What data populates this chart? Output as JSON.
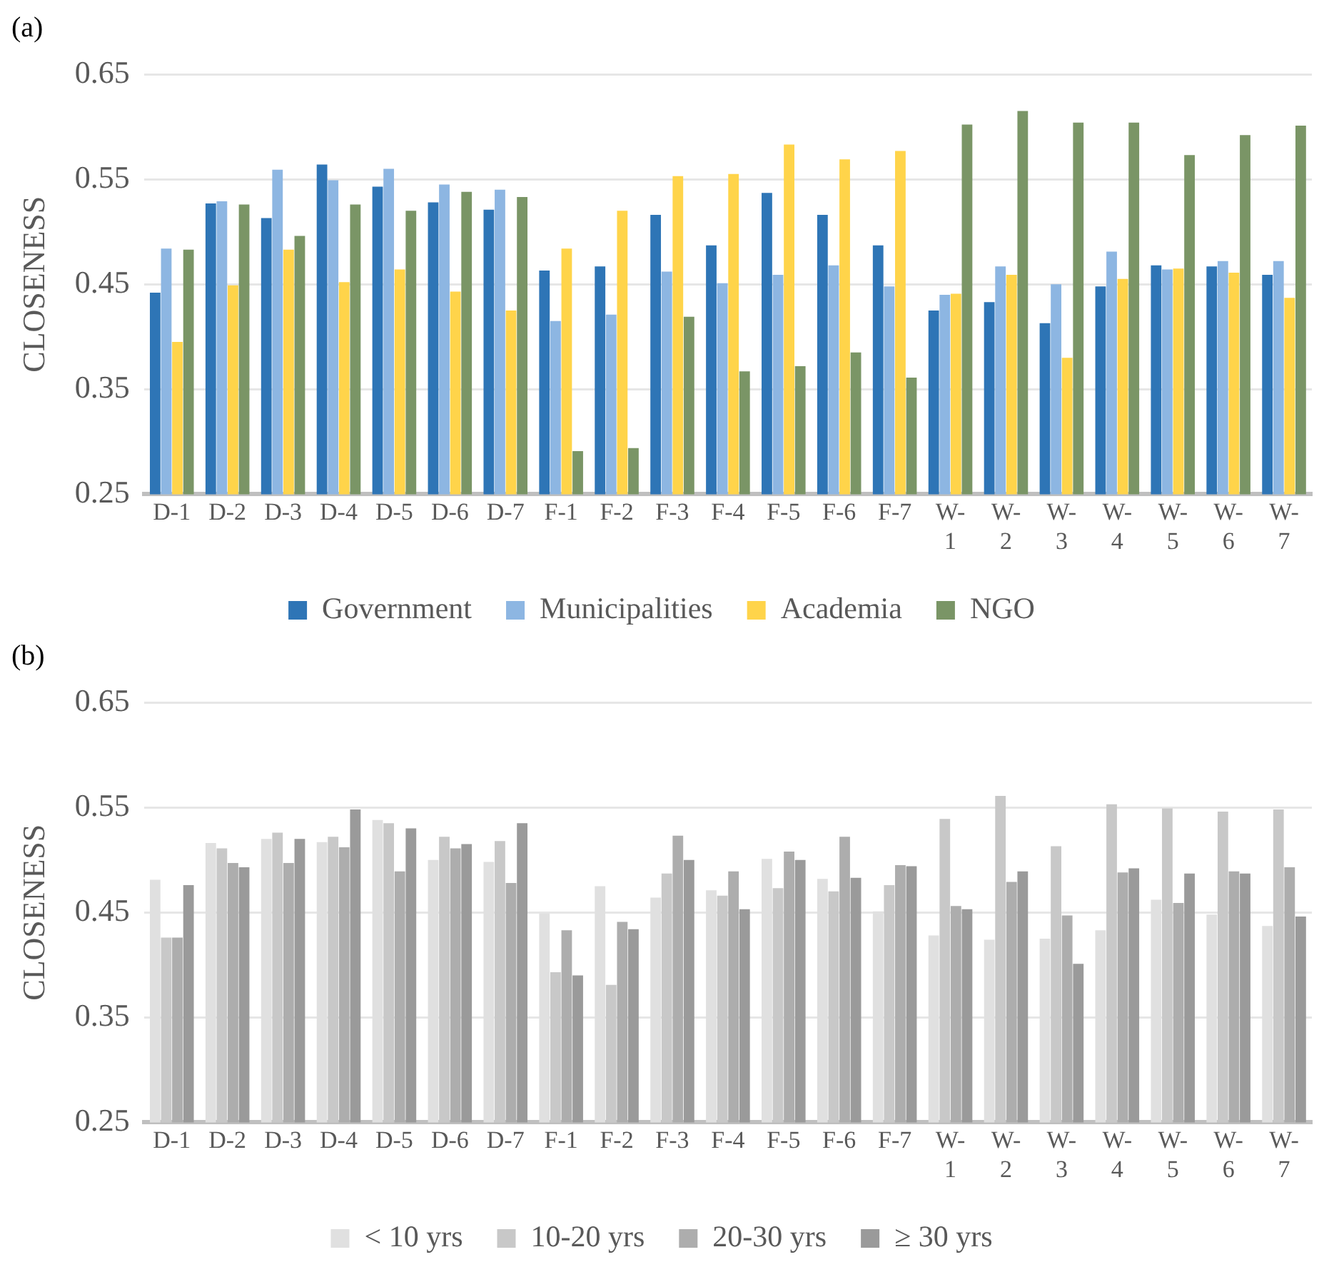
{
  "chart_data": [
    {
      "type": "bar",
      "title": "(a)",
      "ylabel": "CLOSENESS",
      "categories": [
        "D-1",
        "D-2",
        "D-3",
        "D-4",
        "D-5",
        "D-6",
        "D-7",
        "F-1",
        "F-2",
        "F-3",
        "F-4",
        "F-5",
        "F-6",
        "F-7",
        "W-1",
        "W-2",
        "W-3",
        "W-4",
        "W-5",
        "W-6",
        "W-7"
      ],
      "series": [
        {
          "name": "Government",
          "color": "#2e75b6",
          "values": [
            0.442,
            0.527,
            0.513,
            0.564,
            0.543,
            0.528,
            0.521,
            0.463,
            0.467,
            0.516,
            0.487,
            0.537,
            0.516,
            0.487,
            0.425,
            0.433,
            0.413,
            0.448,
            0.468,
            0.467,
            0.459
          ]
        },
        {
          "name": "Municipalities",
          "color": "#8db6e2",
          "values": [
            0.484,
            0.529,
            0.559,
            0.549,
            0.56,
            0.545,
            0.54,
            0.415,
            0.421,
            0.462,
            0.451,
            0.459,
            0.468,
            0.448,
            0.44,
            0.467,
            0.45,
            0.481,
            0.464,
            0.472,
            0.472
          ]
        },
        {
          "name": "Academia",
          "color": "#ffd44a",
          "values": [
            0.395,
            0.449,
            0.483,
            0.452,
            0.464,
            0.443,
            0.425,
            0.484,
            0.52,
            0.553,
            0.555,
            0.583,
            0.569,
            0.577,
            0.441,
            0.459,
            0.38,
            0.455,
            0.465,
            0.461,
            0.437
          ]
        },
        {
          "name": "NGO",
          "color": "#7a9566",
          "values": [
            0.483,
            0.526,
            0.496,
            0.526,
            0.52,
            0.538,
            0.533,
            0.291,
            0.294,
            0.419,
            0.367,
            0.372,
            0.385,
            0.361,
            0.602,
            0.615,
            0.604,
            0.604,
            0.573,
            0.592,
            0.601
          ]
        }
      ],
      "ylim": [
        0.25,
        0.65
      ],
      "yticks": [
        0.25,
        0.35,
        0.45,
        0.55,
        0.65
      ],
      "grid": "y",
      "legend": "bottom"
    },
    {
      "type": "bar",
      "title": "(b)",
      "ylabel": "CLOSENESS",
      "categories": [
        "D-1",
        "D-2",
        "D-3",
        "D-4",
        "D-5",
        "D-6",
        "D-7",
        "F-1",
        "F-2",
        "F-3",
        "F-4",
        "F-5",
        "F-6",
        "F-7",
        "W-1",
        "W-2",
        "W-3",
        "W-4",
        "W-5",
        "W-6",
        "W-7"
      ],
      "series": [
        {
          "name": "< 10 yrs",
          "color": "#e0e0e0",
          "values": [
            0.481,
            0.516,
            0.52,
            0.517,
            0.538,
            0.5,
            0.498,
            0.449,
            0.475,
            0.464,
            0.471,
            0.501,
            0.482,
            0.451,
            0.428,
            0.424,
            0.425,
            0.433,
            0.462,
            0.448,
            0.437
          ]
        },
        {
          "name": "10-20 yrs",
          "color": "#c8c8c8",
          "values": [
            0.426,
            0.511,
            0.526,
            0.522,
            0.535,
            0.522,
            0.518,
            0.393,
            0.381,
            0.487,
            0.466,
            0.473,
            0.47,
            0.476,
            0.539,
            0.561,
            0.513,
            0.553,
            0.549,
            0.546,
            0.548
          ]
        },
        {
          "name": "20-30 yrs",
          "color": "#adadad",
          "values": [
            0.426,
            0.497,
            0.497,
            0.512,
            0.489,
            0.511,
            0.478,
            0.433,
            0.441,
            0.523,
            0.489,
            0.508,
            0.522,
            0.495,
            0.456,
            0.479,
            0.447,
            0.488,
            0.459,
            0.489,
            0.493
          ]
        },
        {
          "name": "≥ 30 yrs",
          "color": "#9a9a9a",
          "values": [
            0.476,
            0.493,
            0.52,
            0.548,
            0.53,
            0.515,
            0.535,
            0.39,
            0.434,
            0.5,
            0.453,
            0.5,
            0.483,
            0.494,
            0.453,
            0.489,
            0.401,
            0.492,
            0.487,
            0.487,
            0.446
          ]
        }
      ],
      "ylim": [
        0.25,
        0.65
      ],
      "yticks": [
        0.25,
        0.35,
        0.45,
        0.55,
        0.65
      ],
      "grid": "y",
      "legend": "bottom"
    }
  ]
}
